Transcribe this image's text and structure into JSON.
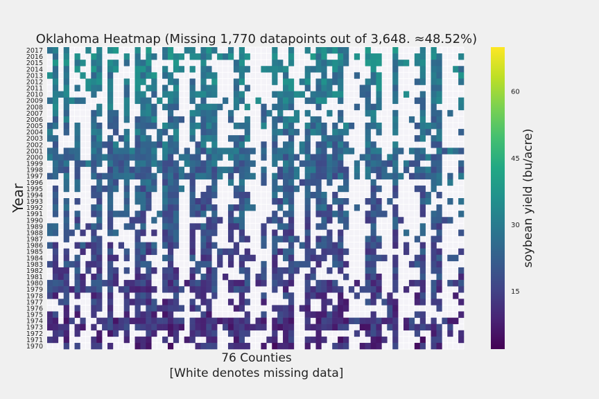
{
  "chart_data": {
    "type": "heatmap",
    "title": "Oklahoma Heatmap (Missing 1,770 datapoints out of 3,648. ≈48.52%)",
    "xlabel": "76 Counties",
    "xlabel_note": "[White denotes missing data]",
    "ylabel": "Year",
    "colorbar_label": "soybean yield (bu/acre)",
    "colorbar_ticks": [
      15,
      30,
      45,
      60
    ],
    "value_range": [
      2,
      70
    ],
    "colormap": "viridis",
    "missing_color": "#ffffff",
    "n_columns": 76,
    "years": [
      2017,
      2016,
      2015,
      2014,
      2013,
      2012,
      2011,
      2010,
      2009,
      2008,
      2007,
      2006,
      2005,
      2004,
      2003,
      2002,
      2001,
      2000,
      1999,
      1998,
      1997,
      1996,
      1995,
      1994,
      1993,
      1992,
      1991,
      1990,
      1989,
      1988,
      1987,
      1986,
      1985,
      1984,
      1983,
      1982,
      1981,
      1980,
      1979,
      1978,
      1977,
      1976,
      1975,
      1974,
      1973,
      1972,
      1971,
      1970
    ],
    "grid": true,
    "colors": {
      "background": "#f0f0f0",
      "plot_background": "#f4f3f8",
      "grid": "#ffffff"
    }
  }
}
